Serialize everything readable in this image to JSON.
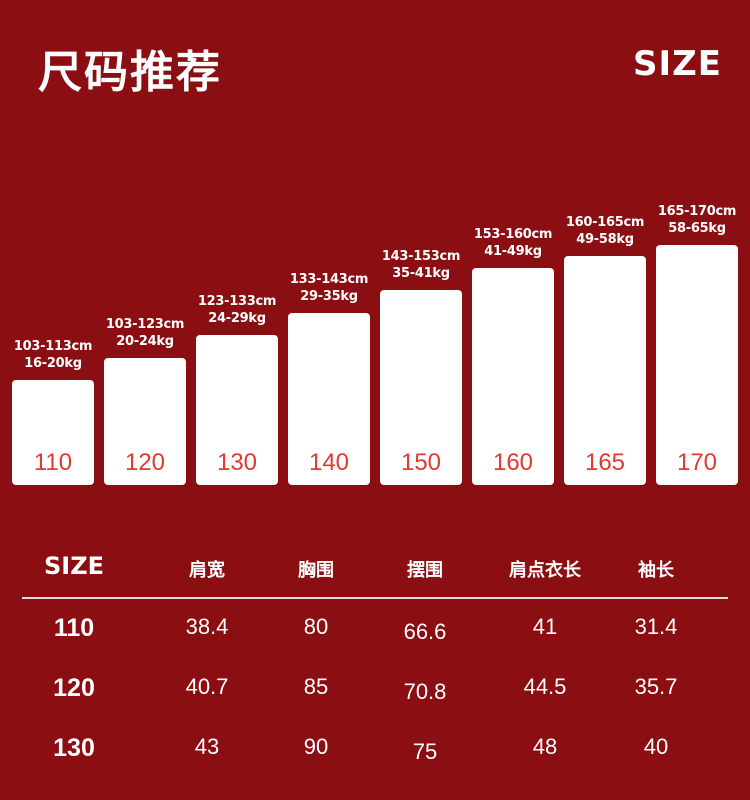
{
  "header": {
    "title": "尺码推荐",
    "tag": "SIZE"
  },
  "chart_data": {
    "type": "bar",
    "categories": [
      "110",
      "120",
      "130",
      "140",
      "150",
      "160",
      "165",
      "170"
    ],
    "heights": [
      "103-113cm",
      "103-123cm",
      "123-133cm",
      "133-143cm",
      "143-153cm",
      "153-160cm",
      "160-165cm",
      "165-170cm"
    ],
    "weights": [
      "16-20kg",
      "20-24kg",
      "24-29kg",
      "29-35kg",
      "35-41kg",
      "41-49kg",
      "49-58kg",
      "58-65kg"
    ],
    "values": [
      110,
      120,
      130,
      140,
      150,
      160,
      165,
      170
    ]
  },
  "table": {
    "headers": [
      "SIZE",
      "肩宽",
      "胸围",
      "摆围",
      "肩点衣长",
      "袖长"
    ],
    "rows": [
      [
        "110",
        "38.4",
        "80",
        "66.6",
        "41",
        "31.4"
      ],
      [
        "120",
        "40.7",
        "85",
        "70.8",
        "44.5",
        "35.7"
      ],
      [
        "130",
        "43",
        "90",
        "75",
        "48",
        "40"
      ]
    ]
  }
}
